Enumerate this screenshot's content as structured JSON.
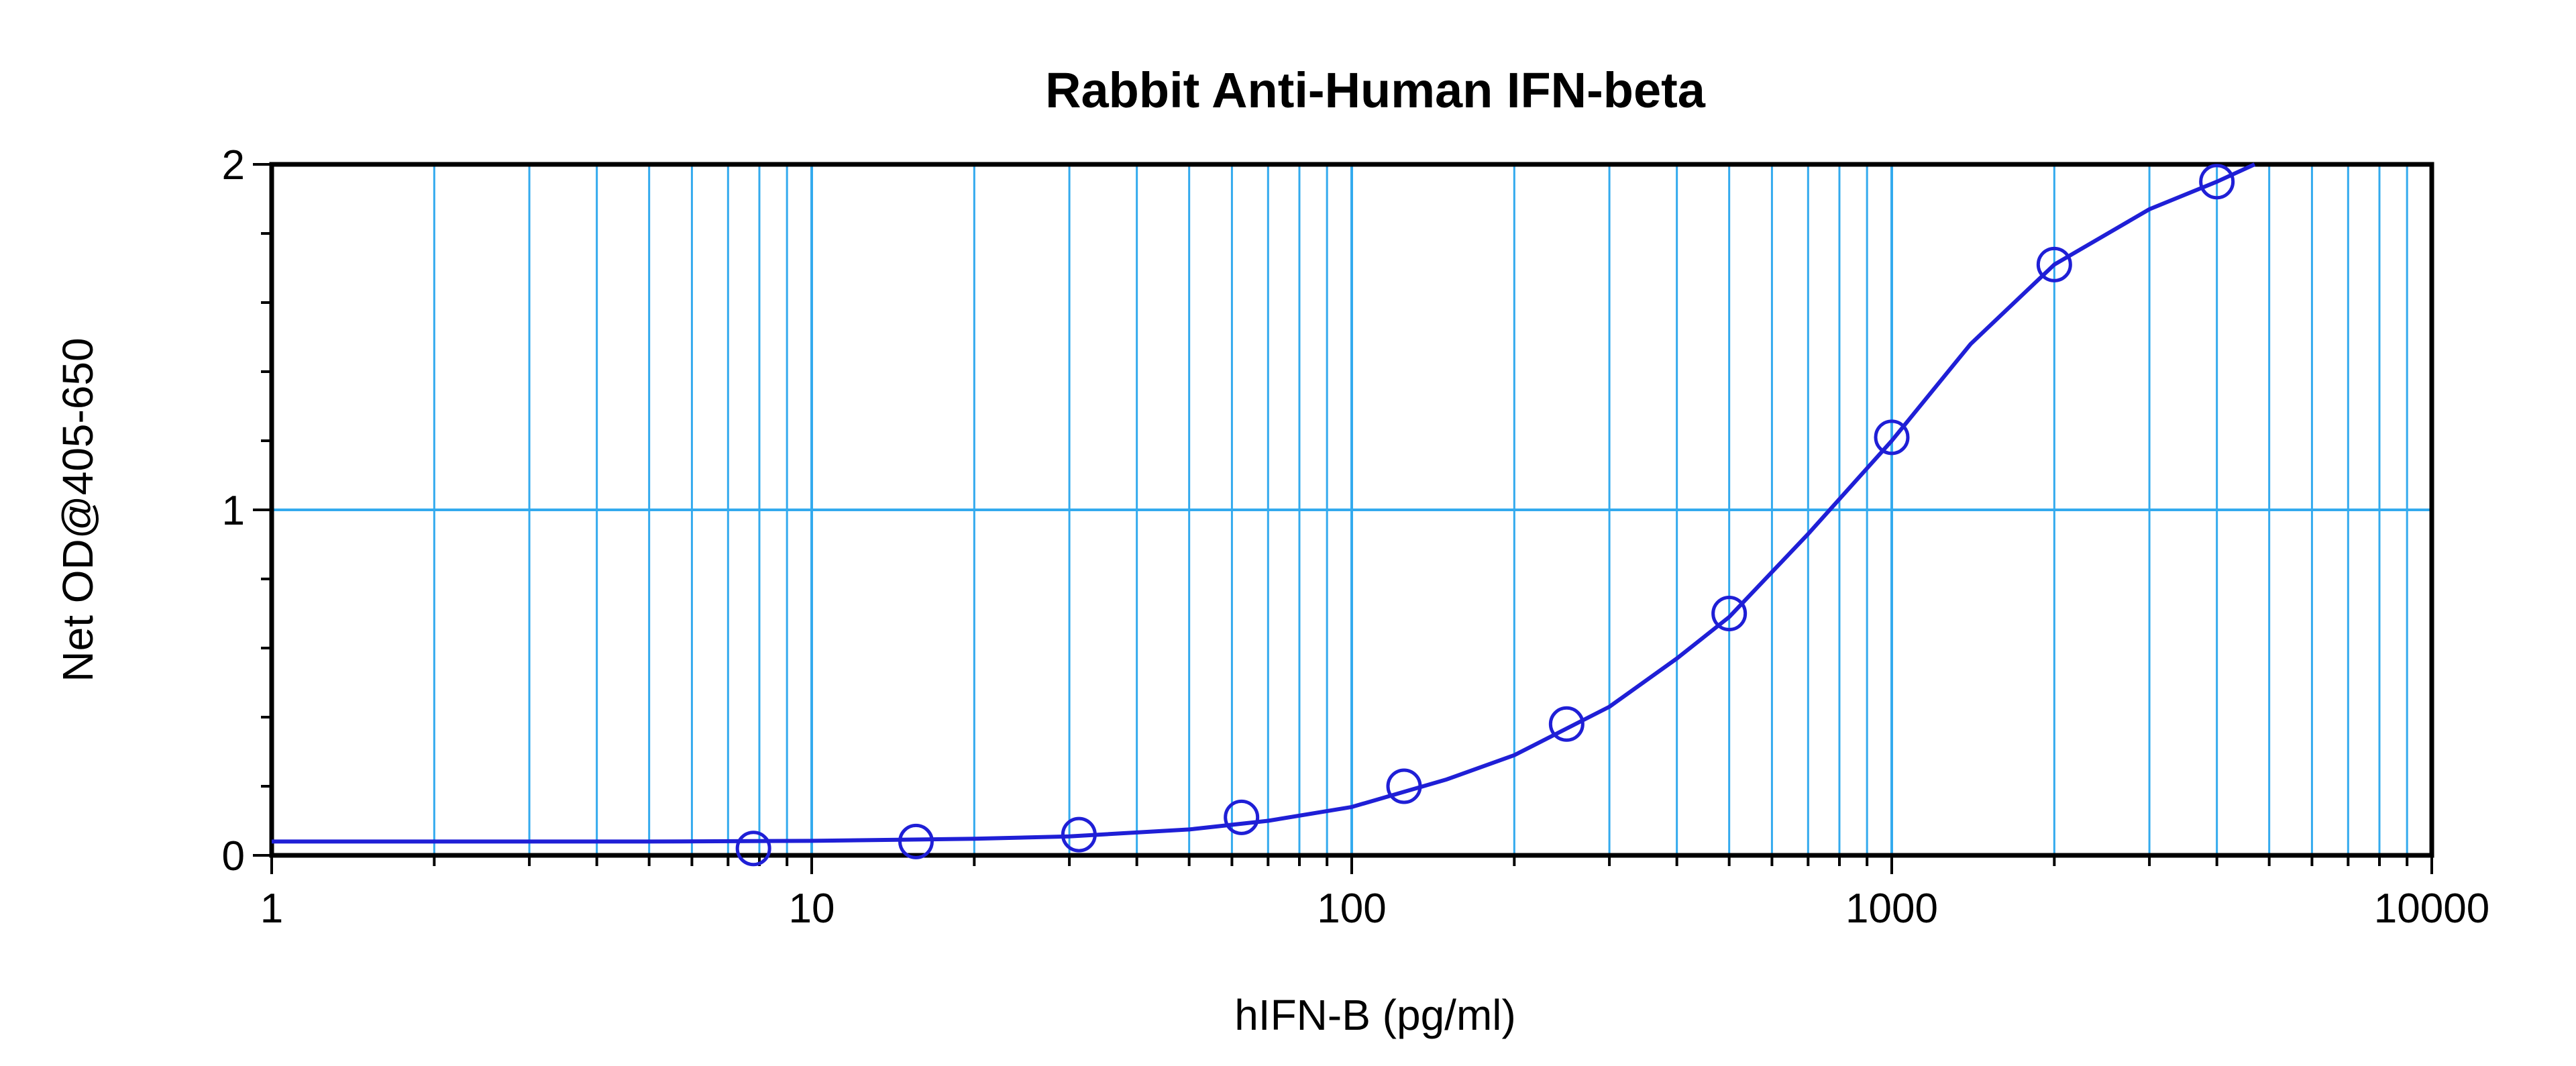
{
  "chart_data": {
    "type": "scatter",
    "title": "Rabbit Anti-Human IFN-beta",
    "xlabel": "hIFN-B (pg/ml)",
    "ylabel": "Net OD@405-650",
    "x_scale": "log",
    "xlim": [
      1,
      10000
    ],
    "ylim": [
      0,
      2
    ],
    "x_ticks": [
      {
        "value": 1,
        "label": "1"
      },
      {
        "value": 10,
        "label": "10"
      },
      {
        "value": 100,
        "label": "100"
      },
      {
        "value": 1000,
        "label": "1000"
      },
      {
        "value": 10000,
        "label": "10000"
      }
    ],
    "y_ticks": [
      {
        "value": 0,
        "label": "0"
      },
      {
        "value": 1,
        "label": "1"
      },
      {
        "value": 2,
        "label": "2"
      }
    ],
    "grid": true,
    "legend": "none",
    "series": [
      {
        "x": [
          7.8,
          15.6,
          31.25,
          62.5,
          125,
          250,
          500,
          1000,
          2000,
          4000
        ],
        "y": [
          0.02,
          0.04,
          0.06,
          0.11,
          0.2,
          0.38,
          0.7,
          1.21,
          1.71,
          1.95
        ],
        "marker": "open-circle",
        "fit": "4PL",
        "fit_points": [
          [
            1,
            0.04
          ],
          [
            5,
            0.04
          ],
          [
            10,
            0.042
          ],
          [
            20,
            0.048
          ],
          [
            30,
            0.055
          ],
          [
            50,
            0.075
          ],
          [
            70,
            0.1
          ],
          [
            100,
            0.14
          ],
          [
            150,
            0.22
          ],
          [
            200,
            0.29
          ],
          [
            300,
            0.43
          ],
          [
            400,
            0.57
          ],
          [
            500,
            0.69
          ],
          [
            700,
            0.93
          ],
          [
            1000,
            1.2
          ],
          [
            1400,
            1.48
          ],
          [
            2000,
            1.71
          ],
          [
            3000,
            1.87
          ],
          [
            4000,
            1.95
          ],
          [
            4700,
            2.0
          ]
        ]
      }
    ],
    "colors": {
      "series": "#1f1fd6",
      "grid": "#33aaee",
      "frame": "#000000"
    }
  }
}
